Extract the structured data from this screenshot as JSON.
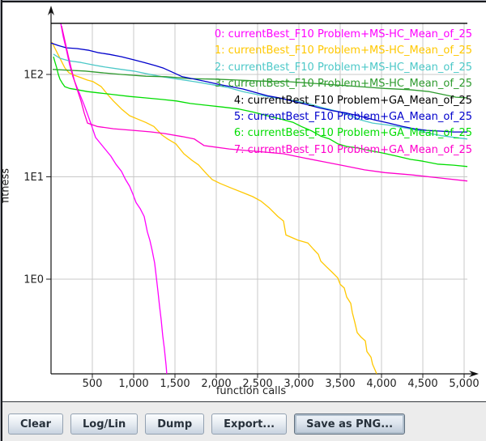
{
  "chart_data": {
    "type": "line",
    "title": "",
    "xlabel": "function calls",
    "ylabel": "fitness",
    "grid_color": "#c8c8c8",
    "axis_color": "#111111",
    "legend_position": "top-right-overlay",
    "x_axis": {
      "min": 0,
      "max": 5120,
      "scale": "linear",
      "ticks": [
        {
          "value": 500,
          "label": "500"
        },
        {
          "value": 1000,
          "label": "1,000"
        },
        {
          "value": 1500,
          "label": "1,500"
        },
        {
          "value": 2000,
          "label": "2,000"
        },
        {
          "value": 2500,
          "label": "2,500"
        },
        {
          "value": 3000,
          "label": "3,000"
        },
        {
          "value": 3500,
          "label": "3,500"
        },
        {
          "value": 4000,
          "label": "4,000"
        },
        {
          "value": 4500,
          "label": "4,500"
        },
        {
          "value": 5000,
          "label": "5,000"
        }
      ]
    },
    "y_axis": {
      "min": 0.12,
      "max": 316,
      "scale": "log",
      "ticks": [
        {
          "value": 100,
          "label": "1E2"
        },
        {
          "value": 10,
          "label": "1E1"
        },
        {
          "value": 1,
          "label": "1E0"
        }
      ]
    },
    "series": [
      {
        "label": "0: currentBest_F10 Problem+MS-HC_Mean_of_25",
        "color": "#ff00ff",
        "points": [
          [
            118,
            316
          ],
          [
            147,
            235
          ],
          [
            186,
            173
          ],
          [
            225,
            124
          ],
          [
            265,
            95
          ],
          [
            314,
            75
          ],
          [
            363,
            60
          ],
          [
            402,
            50
          ],
          [
            441,
            41
          ],
          [
            480,
            33.5
          ],
          [
            539,
            24.2
          ],
          [
            637,
            19.4
          ],
          [
            725,
            15.9
          ],
          [
            784,
            13.3
          ],
          [
            853,
            11.3
          ],
          [
            902,
            9.4
          ],
          [
            951,
            8.1
          ],
          [
            990,
            6.8
          ],
          [
            1029,
            5.6
          ],
          [
            1078,
            4.9
          ],
          [
            1127,
            4.1
          ],
          [
            1166,
            2.9
          ],
          [
            1196,
            2.4
          ],
          [
            1225,
            1.9
          ],
          [
            1254,
            1.44
          ],
          [
            1274,
            1.06
          ],
          [
            1294,
            0.76
          ],
          [
            1313,
            0.55
          ],
          [
            1333,
            0.4
          ],
          [
            1352,
            0.28
          ],
          [
            1372,
            0.21
          ],
          [
            1392,
            0.145
          ],
          [
            1401,
            0.119
          ]
        ]
      },
      {
        "label": "1: currentBest_F10 Problem+MS-HC_Mean_of_25",
        "color": "#ffc800",
        "points": [
          [
            10,
            207
          ],
          [
            49,
            179
          ],
          [
            88,
            155
          ],
          [
            127,
            134
          ],
          [
            167,
            116
          ],
          [
            216,
            104
          ],
          [
            284,
            98
          ],
          [
            363,
            93
          ],
          [
            441,
            88
          ],
          [
            510,
            85
          ],
          [
            608,
            76
          ],
          [
            686,
            63.5
          ],
          [
            755,
            55
          ],
          [
            853,
            46
          ],
          [
            951,
            39.5
          ],
          [
            1049,
            36.6
          ],
          [
            1147,
            34
          ],
          [
            1245,
            31
          ],
          [
            1343,
            25.6
          ],
          [
            1412,
            23.4
          ],
          [
            1510,
            21
          ],
          [
            1608,
            16.8
          ],
          [
            1706,
            14.5
          ],
          [
            1784,
            13.1
          ],
          [
            1882,
            10.7
          ],
          [
            1951,
            9.4
          ],
          [
            2049,
            8.6
          ],
          [
            2176,
            7.8
          ],
          [
            2324,
            7
          ],
          [
            2441,
            6.4
          ],
          [
            2539,
            5.8
          ],
          [
            2637,
            5
          ],
          [
            2745,
            4.1
          ],
          [
            2814,
            3.7
          ],
          [
            2843,
            2.7
          ],
          [
            2990,
            2.4
          ],
          [
            3108,
            2.26
          ],
          [
            3176,
            1.96
          ],
          [
            3235,
            1.75
          ],
          [
            3265,
            1.5
          ],
          [
            3333,
            1.32
          ],
          [
            3402,
            1.17
          ],
          [
            3471,
            1.03
          ],
          [
            3500,
            0.89
          ],
          [
            3549,
            0.82
          ],
          [
            3578,
            0.67
          ],
          [
            3627,
            0.58
          ],
          [
            3647,
            0.47
          ],
          [
            3676,
            0.38
          ],
          [
            3706,
            0.3
          ],
          [
            3755,
            0.27
          ],
          [
            3804,
            0.25
          ],
          [
            3824,
            0.196
          ],
          [
            3873,
            0.173
          ],
          [
            3892,
            0.147
          ],
          [
            3922,
            0.13
          ],
          [
            3941,
            0.119
          ]
        ]
      },
      {
        "label": "2: currentBest_F10 Problem+MS-HC_Mean_of_25",
        "color": "#4cc8c8",
        "points": [
          [
            29,
            158
          ],
          [
            108,
            144
          ],
          [
            216,
            136
          ],
          [
            363,
            131
          ],
          [
            510,
            124
          ],
          [
            657,
            118
          ],
          [
            853,
            112
          ],
          [
            1000,
            108
          ],
          [
            1147,
            102
          ],
          [
            1343,
            95
          ],
          [
            1539,
            90
          ],
          [
            1735,
            85
          ],
          [
            1931,
            80
          ],
          [
            2127,
            75
          ],
          [
            2324,
            68
          ],
          [
            2520,
            63
          ],
          [
            2716,
            59
          ],
          [
            2912,
            56
          ],
          [
            3108,
            52
          ],
          [
            3304,
            47
          ],
          [
            3500,
            43
          ],
          [
            3647,
            39
          ],
          [
            3745,
            36
          ],
          [
            3892,
            33.5
          ],
          [
            4088,
            32
          ],
          [
            4284,
            30
          ],
          [
            4431,
            28.6
          ],
          [
            4578,
            26.6
          ],
          [
            4725,
            25.2
          ],
          [
            4873,
            24.3
          ],
          [
            5039,
            23.4
          ]
        ]
      },
      {
        "label": "3: currentBest_F10 Problem+MS-HC_Mean_of_25",
        "color": "#2e9b2e",
        "points": [
          [
            20,
            112
          ],
          [
            216,
            110
          ],
          [
            412,
            108
          ],
          [
            608,
            104
          ],
          [
            853,
            100
          ],
          [
            1147,
            96
          ],
          [
            1392,
            95
          ],
          [
            1686,
            91
          ],
          [
            1980,
            90
          ],
          [
            2274,
            88
          ],
          [
            2569,
            86
          ],
          [
            2863,
            85
          ],
          [
            3157,
            82
          ],
          [
            3451,
            79
          ],
          [
            3745,
            76
          ],
          [
            4039,
            73
          ],
          [
            4333,
            71
          ],
          [
            4578,
            68
          ],
          [
            4774,
            63
          ],
          [
            4902,
            60
          ],
          [
            5039,
            59
          ]
        ]
      },
      {
        "label": "4: currentBest_F10 Problem+GA_Mean_of_25",
        "color": "#000000",
        "points": [
          [
            0,
            316
          ],
          [
            5039,
            316
          ]
        ]
      },
      {
        "label": "5: currentBest_F10 Problem+GA_Mean_of_25",
        "color": "#0000cc",
        "points": [
          [
            0,
            203
          ],
          [
            88,
            192
          ],
          [
            186,
            182
          ],
          [
            314,
            179
          ],
          [
            461,
            172
          ],
          [
            578,
            163
          ],
          [
            706,
            157
          ],
          [
            853,
            149
          ],
          [
            1000,
            139
          ],
          [
            1127,
            131
          ],
          [
            1265,
            122
          ],
          [
            1363,
            115
          ],
          [
            1461,
            106
          ],
          [
            1588,
            95
          ],
          [
            1735,
            90
          ],
          [
            1882,
            85
          ],
          [
            2029,
            80
          ],
          [
            2176,
            76
          ],
          [
            2324,
            72
          ],
          [
            2490,
            66
          ],
          [
            2618,
            62
          ],
          [
            2765,
            59
          ],
          [
            2912,
            55
          ],
          [
            3088,
            51
          ],
          [
            3255,
            47
          ],
          [
            3422,
            44
          ],
          [
            3578,
            42
          ],
          [
            3745,
            39
          ],
          [
            3912,
            36
          ],
          [
            4088,
            33.5
          ],
          [
            4255,
            31
          ],
          [
            4402,
            29.4
          ],
          [
            4549,
            28.4
          ],
          [
            4725,
            27.9
          ],
          [
            4873,
            27.4
          ],
          [
            5039,
            27.4
          ]
        ]
      },
      {
        "label": "6: currentBest_F10 Problem+GA_Mean_of_25",
        "color": "#00dd00",
        "points": [
          [
            29,
            149
          ],
          [
            49,
            131
          ],
          [
            69,
            116
          ],
          [
            88,
            100
          ],
          [
            108,
            90
          ],
          [
            137,
            82
          ],
          [
            167,
            76
          ],
          [
            225,
            73
          ],
          [
            314,
            71
          ],
          [
            441,
            68
          ],
          [
            578,
            66
          ],
          [
            755,
            63.5
          ],
          [
            951,
            61
          ],
          [
            1147,
            59
          ],
          [
            1343,
            57
          ],
          [
            1520,
            55
          ],
          [
            1686,
            52
          ],
          [
            1882,
            50
          ],
          [
            2078,
            48
          ],
          [
            2274,
            46
          ],
          [
            2441,
            43
          ],
          [
            2618,
            39.5
          ],
          [
            2784,
            36.6
          ],
          [
            2931,
            34
          ],
          [
            3029,
            31
          ],
          [
            3157,
            28
          ],
          [
            3265,
            25
          ],
          [
            3373,
            23.4
          ],
          [
            3471,
            21
          ],
          [
            3578,
            19.8
          ],
          [
            3716,
            19.1
          ],
          [
            3843,
            18.1
          ],
          [
            4010,
            17.1
          ],
          [
            4186,
            15.9
          ],
          [
            4353,
            14.8
          ],
          [
            4500,
            14.2
          ],
          [
            4676,
            13.3
          ],
          [
            4873,
            13
          ],
          [
            5039,
            12.6
          ]
        ]
      },
      {
        "label": "7: currentBest_F10 Problem+GA_Mean_of_25",
        "color": "#ff00cc",
        "points": [
          [
            127,
            298
          ],
          [
            167,
            215
          ],
          [
            206,
            155
          ],
          [
            245,
            114
          ],
          [
            284,
            86
          ],
          [
            323,
            69
          ],
          [
            363,
            55
          ],
          [
            402,
            42
          ],
          [
            441,
            33.5
          ],
          [
            559,
            31
          ],
          [
            755,
            29.5
          ],
          [
            980,
            28.5
          ],
          [
            1196,
            27.5
          ],
          [
            1372,
            26.5
          ],
          [
            1588,
            24.7
          ],
          [
            1735,
            23.4
          ],
          [
            1853,
            20.2
          ],
          [
            2157,
            18.7
          ],
          [
            2490,
            17.7
          ],
          [
            2814,
            16.8
          ],
          [
            3059,
            15.3
          ],
          [
            3304,
            14
          ],
          [
            3549,
            12.8
          ],
          [
            3794,
            11.7
          ],
          [
            4039,
            11
          ],
          [
            4382,
            10.4
          ],
          [
            4676,
            9.8
          ],
          [
            5039,
            9.1
          ]
        ]
      }
    ]
  },
  "toolbar": {
    "buttons": [
      {
        "label": "Clear"
      },
      {
        "label": "Log/Lin"
      },
      {
        "label": "Dump"
      },
      {
        "label": "Export..."
      },
      {
        "label": "Save as PNG..."
      }
    ]
  }
}
